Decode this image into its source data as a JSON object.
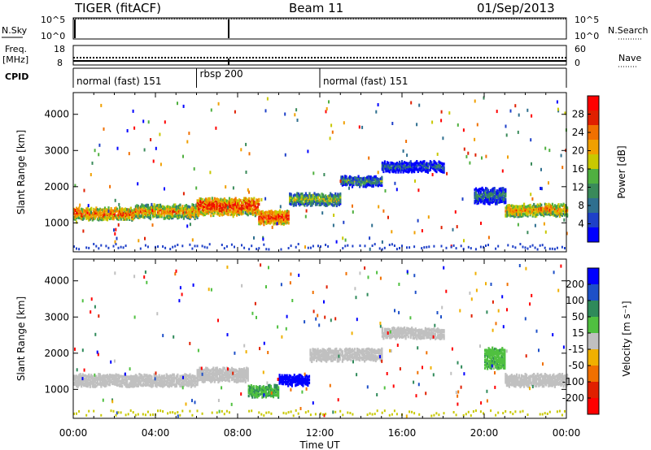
{
  "header": {
    "station": "TIGER (fitACF)",
    "beam": "Beam 11",
    "date": "01/Sep/2013"
  },
  "aux": {
    "nsky_label": "N.Sky",
    "nsky_ticks": [
      "10^5",
      "10^0"
    ],
    "nsky_right_ticks": [
      "10^5",
      "10^0"
    ],
    "nsearch_label": "N.Search",
    "freq_label": "Freq.",
    "freq_unit": "[MHz]",
    "freq_ticks": [
      "18",
      "8"
    ],
    "nave_label": "Nave",
    "nave_ticks": [
      "60",
      "0"
    ],
    "cpid_label": "CPID",
    "cpid_segments": [
      {
        "label": "normal (fast) 151",
        "start": 0,
        "end": 6
      },
      {
        "label": "rbsp 200",
        "start": 6,
        "end": 12
      },
      {
        "label": "normal (fast) 151",
        "start": 12,
        "end": 24
      }
    ]
  },
  "power_panel": {
    "ylabel": "Slant Range [km]",
    "yticks": [
      "4000",
      "3000",
      "2000",
      "1000"
    ],
    "colorbar_label": "Power [dB]",
    "colorbar_ticks": [
      "28",
      "24",
      "20",
      "16",
      "12",
      "8",
      "4"
    ],
    "colors": [
      "#0000ff",
      "#1e40c8",
      "#2f6f8f",
      "#3a8a5a",
      "#50b040",
      "#c8c800",
      "#f0a000",
      "#f07000",
      "#e02000",
      "#ff0000"
    ]
  },
  "velocity_panel": {
    "ylabel": "Slant Range [km]",
    "yticks": [
      "4000",
      "3000",
      "2000",
      "1000"
    ],
    "colorbar_label": "Velocity [m s⁻¹]",
    "colorbar_ticks": [
      "200",
      "100",
      "50",
      "15",
      "-15",
      "-50",
      "-100",
      "-200"
    ],
    "colors": [
      "#0000ff",
      "#1e50c8",
      "#2f8a5a",
      "#50c040",
      "#c0c0c0",
      "#f0b000",
      "#f07000",
      "#e02000",
      "#ff0000"
    ]
  },
  "xaxis": {
    "ticks": [
      "00:00",
      "04:00",
      "08:00",
      "12:00",
      "16:00",
      "20:00",
      "00:00"
    ],
    "label": "Time UT"
  },
  "chart_data": [
    {
      "type": "heatmap",
      "title": "Power [dB]",
      "xlabel": "Time UT",
      "ylabel": "Slant Range [km]",
      "xlim": [
        0,
        24
      ],
      "ylim": [
        200,
        4600
      ],
      "zlim": [
        0,
        30
      ],
      "bands": [
        {
          "t": [
            0,
            3
          ],
          "range_center": 1300,
          "range_width": 300,
          "value": 24
        },
        {
          "t": [
            3,
            6
          ],
          "range_center": 1350,
          "range_width": 320,
          "value": 22
        },
        {
          "t": [
            6,
            9
          ],
          "range_center": 1500,
          "range_width": 450,
          "value": 26
        },
        {
          "t": [
            9,
            10.5
          ],
          "range_center": 1200,
          "range_width": 350,
          "value": 27
        },
        {
          "t": [
            10.5,
            13
          ],
          "range_center": 1700,
          "range_width": 300,
          "value": 16
        },
        {
          "t": [
            13,
            15
          ],
          "range_center": 2200,
          "range_width": 250,
          "value": 12
        },
        {
          "t": [
            15,
            18
          ],
          "range_center": 2600,
          "range_width": 250,
          "value": 8
        },
        {
          "t": [
            19.5,
            21
          ],
          "range_center": 1800,
          "range_width": 400,
          "value": 10
        },
        {
          "t": [
            21,
            24
          ],
          "range_center": 1400,
          "range_width": 300,
          "value": 22
        }
      ]
    },
    {
      "type": "heatmap",
      "title": "Velocity [m s⁻¹]",
      "xlabel": "Time UT",
      "ylabel": "Slant Range [km]",
      "xlim": [
        0,
        24
      ],
      "ylim": [
        200,
        4600
      ],
      "zlim": [
        -200,
        200
      ],
      "bands": [
        {
          "t": [
            0,
            6
          ],
          "range_center": 1300,
          "range_width": 300,
          "value": 0
        },
        {
          "t": [
            6,
            8.5
          ],
          "range_center": 1450,
          "range_width": 350,
          "value": 0
        },
        {
          "t": [
            8.5,
            10
          ],
          "range_center": 1000,
          "range_width": 300,
          "value": 60
        },
        {
          "t": [
            10,
            11.5
          ],
          "range_center": 1300,
          "range_width": 250,
          "value": 200
        },
        {
          "t": [
            11.5,
            15
          ],
          "range_center": 2000,
          "range_width": 300,
          "value": 0
        },
        {
          "t": [
            15,
            18
          ],
          "range_center": 2600,
          "range_width": 250,
          "value": 0
        },
        {
          "t": [
            20,
            21
          ],
          "range_center": 1900,
          "range_width": 500,
          "value": 50
        },
        {
          "t": [
            21,
            24
          ],
          "range_center": 1300,
          "range_width": 300,
          "value": 0
        }
      ]
    }
  ]
}
